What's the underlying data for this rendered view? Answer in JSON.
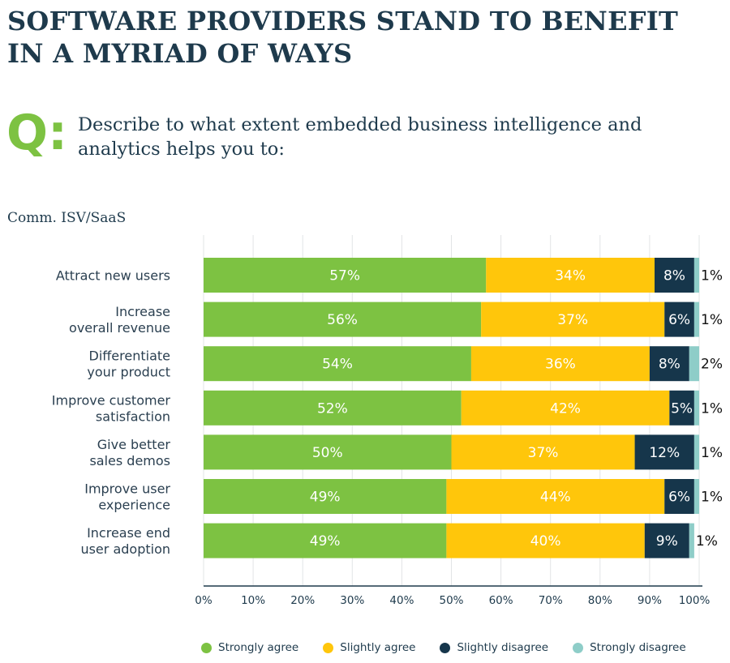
{
  "title": "SOFTWARE PROVIDERS STAND TO BENEFIT IN A MYRIAD OF WAYS",
  "question_mark": "Q:",
  "question": "Describe to what extent embedded business intelligence and analytics helps you to:",
  "group_label": "Comm. ISV/SaaS",
  "chart_data": {
    "type": "bar",
    "orientation": "horizontal",
    "stacked": true,
    "categories": [
      "Attract new users",
      "Increase overall revenue",
      "Differentiate your product",
      "Improve customer satisfaction",
      "Give better sales demos",
      "Improve user experience",
      "Increase end user adoption"
    ],
    "series": [
      {
        "name": "Strongly agree",
        "color": "#7dc242",
        "values": [
          57,
          56,
          54,
          52,
          50,
          49,
          49
        ],
        "labels": [
          "57%",
          "56%",
          "54%",
          "52%",
          "50%",
          "49%",
          "49%"
        ]
      },
      {
        "name": "Slightly agree",
        "color": "#ffc60b",
        "values": [
          34,
          37,
          36,
          42,
          37,
          44,
          40
        ],
        "labels": [
          "34%",
          "37%",
          "36%",
          "42%",
          "37%",
          "44%",
          "40%"
        ]
      },
      {
        "name": "Slightly disagree",
        "color": "#16364b",
        "values": [
          8,
          6,
          8,
          5,
          12,
          6,
          9
        ],
        "labels": [
          "8%",
          "6%",
          "8%",
          "5%",
          "12%",
          "6%",
          "9%"
        ]
      },
      {
        "name": "Strongly disagree",
        "color": "#8ecdc8",
        "values": [
          1,
          1,
          2,
          1,
          1,
          1,
          1
        ],
        "labels": [
          "1%",
          "1%",
          "2%",
          "1%",
          "1%",
          "1%",
          "1%"
        ]
      }
    ],
    "xlim": [
      0,
      100
    ],
    "xticks": [
      "0%",
      "10%",
      "20%",
      "30%",
      "40%",
      "50%",
      "60%",
      "70%",
      "80%",
      "90%",
      "100%"
    ],
    "grid": true,
    "legend_position": "bottom"
  }
}
